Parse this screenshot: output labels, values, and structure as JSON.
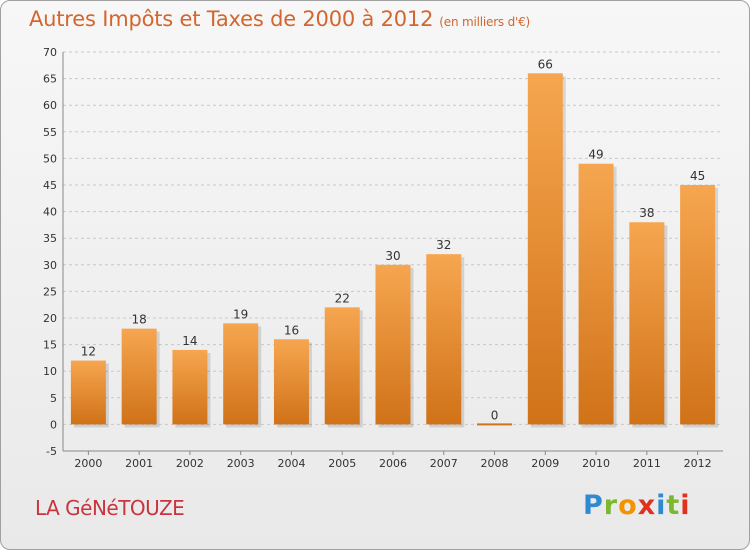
{
  "header": {
    "title": "Autres Impôts et Taxes de 2000 à 2012",
    "unit": "(en milliers d'€)"
  },
  "footer": {
    "location": "LA GéNéTOUZE",
    "logo_text": "Proxiti"
  },
  "colors": {
    "bar_light": "#f6a650",
    "bar_dark": "#d07218",
    "title": "#d2662e",
    "location": "#c8353f",
    "grid": "#c8c8c8"
  },
  "chart_data": {
    "type": "bar",
    "title": "Autres Impôts et Taxes de 2000 à 2012",
    "subtitle": "(en milliers d'€)",
    "categories": [
      "2000",
      "2001",
      "2002",
      "2003",
      "2004",
      "2005",
      "2006",
      "2007",
      "2008",
      "2009",
      "2010",
      "2011",
      "2012"
    ],
    "values": [
      12,
      18,
      14,
      19,
      16,
      22,
      30,
      32,
      0,
      66,
      49,
      38,
      45
    ],
    "ylim": [
      -5,
      70
    ],
    "yticks": [
      -5,
      0,
      5,
      10,
      15,
      20,
      25,
      30,
      35,
      40,
      45,
      50,
      55,
      60,
      65,
      70
    ],
    "grid": "horizontal dashed",
    "legend": "none"
  }
}
